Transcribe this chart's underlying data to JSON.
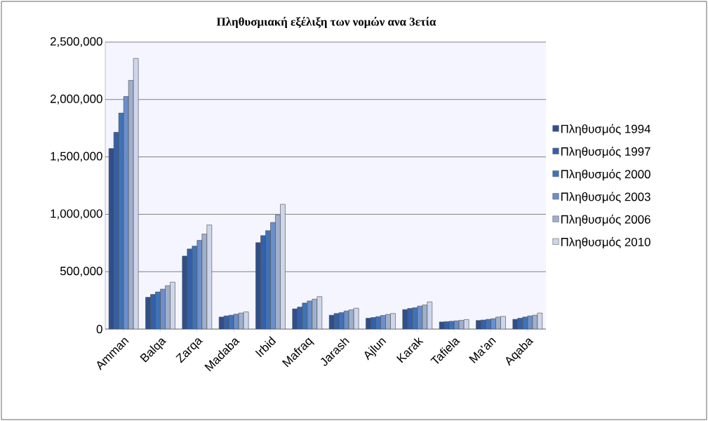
{
  "chart_data": {
    "type": "bar",
    "title": "Πληθυσμιακή εξέλιξη των νομών ανα 3ετία",
    "categories": [
      "Amman",
      "Balqa",
      "Zarqa",
      "Madaba",
      "Irbid",
      "Mafraq",
      "Jarash",
      "Ajlun",
      "Karak",
      "Tafiela",
      "Ma'an",
      "Aqaba"
    ],
    "series": [
      {
        "name": "Πληθυσμός 1994",
        "color": "#2e4f8a",
        "values": [
          1573000,
          277000,
          636000,
          105000,
          753000,
          176000,
          121000,
          95000,
          170000,
          62000,
          75000,
          85000
        ]
      },
      {
        "name": "Πληθυσμός 1997",
        "color": "#3560a8",
        "values": [
          1714000,
          302000,
          698000,
          115000,
          814000,
          192000,
          136000,
          101000,
          180000,
          65000,
          79000,
          95000
        ]
      },
      {
        "name": "Πληθυσμός 2000",
        "color": "#3f73b8",
        "values": [
          1882000,
          324000,
          723000,
          121000,
          858000,
          227000,
          144000,
          109000,
          186000,
          68000,
          85000,
          105000
        ]
      },
      {
        "name": "Πληθυσμός 2003",
        "color": "#6b8fcc",
        "values": [
          2026000,
          348000,
          773000,
          130000,
          929000,
          245000,
          158000,
          119000,
          200000,
          72000,
          91000,
          115000
        ]
      },
      {
        "name": "Πληθυσμός 2006",
        "color": "#9fb0cc",
        "values": [
          2168000,
          378000,
          828000,
          140000,
          994000,
          261000,
          168000,
          128000,
          210000,
          76000,
          105000,
          121000
        ]
      },
      {
        "name": "Πληθυσμός 2010",
        "color": "#cdd6ea",
        "values": [
          2358000,
          409000,
          907000,
          150000,
          1087000,
          283000,
          182000,
          136000,
          237000,
          83000,
          111000,
          140000
        ]
      }
    ],
    "ylim": [
      0,
      2500000
    ],
    "yticks": [
      {
        "value": 0,
        "label": "0"
      },
      {
        "value": 500000,
        "label": "500,000"
      },
      {
        "value": 1000000,
        "label": "1,000,000"
      },
      {
        "value": 1500000,
        "label": "1,500,000"
      },
      {
        "value": 2000000,
        "label": "2,000,000"
      },
      {
        "value": 2500000,
        "label": "2,500,000"
      }
    ],
    "grid": "y",
    "legend": "right"
  }
}
